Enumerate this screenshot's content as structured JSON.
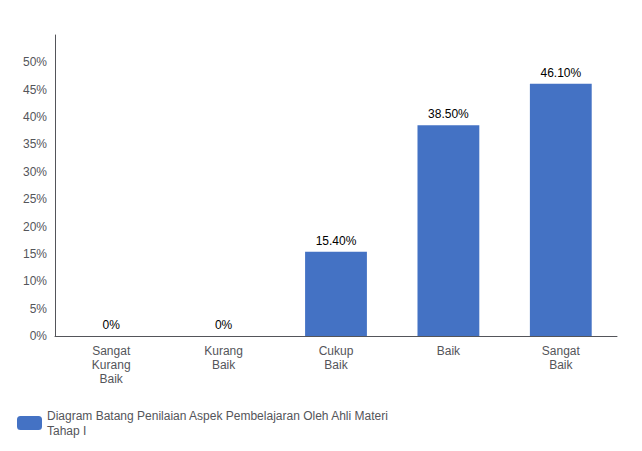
{
  "chart_data": {
    "type": "bar",
    "categories": [
      "Sangat\nKurang\nBaik",
      "Kurang\nBaik",
      "Cukup\nBaik",
      "Baik",
      "Sangat\nBaik"
    ],
    "series": [
      {
        "name": "Diagram Batang Penilaian Aspek Pembelajaran Oleh Ahli Materi\nTahap I",
        "color": "#4472C4",
        "values": [
          0.0,
          0.0,
          15.4,
          38.5,
          46.1
        ],
        "value_labels": [
          "0%",
          "0%",
          "15.40%",
          "38.50%",
          "46.10%"
        ]
      }
    ],
    "ylim": [
      0,
      55
    ],
    "yticks": [
      {
        "value": 0,
        "label": "0%"
      },
      {
        "value": 5,
        "label": "5%"
      },
      {
        "value": 10,
        "label": "10%"
      },
      {
        "value": 15,
        "label": "15%"
      },
      {
        "value": 20,
        "label": "20%"
      },
      {
        "value": 25,
        "label": "25%"
      },
      {
        "value": 30,
        "label": "30%"
      },
      {
        "value": 35,
        "label": "35%"
      },
      {
        "value": 40,
        "label": "40%"
      },
      {
        "value": 45,
        "label": "45%"
      },
      {
        "value": 50,
        "label": "50%"
      }
    ],
    "grid": false,
    "legend": "lower left",
    "data_labels": true
  }
}
